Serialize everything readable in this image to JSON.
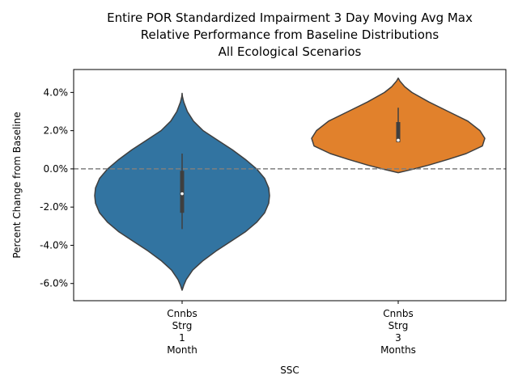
{
  "chart_data": {
    "type": "violin",
    "title_lines": [
      "Entire POR Standardized Impairment 3 Day Moving Avg Max",
      "Relative Performance from Baseline Distributions",
      "All Ecological Scenarios"
    ],
    "xlabel": "SSC",
    "ylabel": "Percent Change from Baseline",
    "ylim": [
      -6.9,
      5.2
    ],
    "yticks": [
      {
        "value": 4.0,
        "label": "4.0%"
      },
      {
        "value": 2.0,
        "label": "2.0%"
      },
      {
        "value": 0.0,
        "label": "0.0%"
      },
      {
        "value": -2.0,
        "label": "-2.0%"
      },
      {
        "value": -4.0,
        "label": "-4.0%"
      },
      {
        "value": -6.0,
        "label": "-6.0%"
      }
    ],
    "reference_line": {
      "y": 0.0,
      "style": "dashed",
      "color": "#7f7f7f"
    },
    "categories": [
      {
        "lines": [
          "Cnnbs",
          "Strg",
          "1",
          "Month"
        ]
      },
      {
        "lines": [
          "Cnnbs",
          "Strg",
          "3",
          "Months"
        ]
      }
    ],
    "violins": [
      {
        "color": "#3274a1",
        "min": -6.35,
        "max": 3.95,
        "q1": -2.3,
        "median": -1.3,
        "q3": -0.1,
        "whisker_low": -3.15,
        "whisker_high": 0.8,
        "profile": [
          [
            3.95,
            0.02
          ],
          [
            3.8,
            0.3
          ],
          [
            3.5,
            2.0
          ],
          [
            3.0,
            6.5
          ],
          [
            2.5,
            14.0
          ],
          [
            2.0,
            26.0
          ],
          [
            1.5,
            44.0
          ],
          [
            1.0,
            62.0
          ],
          [
            0.5,
            78.0
          ],
          [
            0.0,
            92.0
          ],
          [
            -0.5,
            102.0
          ],
          [
            -1.0,
            107.0
          ],
          [
            -1.4,
            108.0
          ],
          [
            -1.8,
            107.0
          ],
          [
            -2.3,
            102.0
          ],
          [
            -2.8,
            92.0
          ],
          [
            -3.3,
            78.0
          ],
          [
            -3.8,
            60.0
          ],
          [
            -4.3,
            42.0
          ],
          [
            -4.8,
            26.0
          ],
          [
            -5.3,
            13.0
          ],
          [
            -5.8,
            5.0
          ],
          [
            -6.1,
            2.0
          ],
          [
            -6.35,
            0.02
          ]
        ]
      },
      {
        "color": "#e1812c",
        "min": -0.2,
        "max": 4.75,
        "q1": 1.4,
        "median": 1.5,
        "q3": 2.45,
        "whisker_low": 1.4,
        "whisker_high": 3.2,
        "profile": [
          [
            4.75,
            0.02
          ],
          [
            4.6,
            2.0
          ],
          [
            4.3,
            8.0
          ],
          [
            4.0,
            17.0
          ],
          [
            3.5,
            38.0
          ],
          [
            3.0,
            62.0
          ],
          [
            2.5,
            86.0
          ],
          [
            2.0,
            101.0
          ],
          [
            1.6,
            107.0
          ],
          [
            1.2,
            104.0
          ],
          [
            0.8,
            84.0
          ],
          [
            0.5,
            62.0
          ],
          [
            0.2,
            38.0
          ],
          [
            0.0,
            20.0
          ],
          [
            -0.2,
            0.02
          ]
        ]
      }
    ]
  }
}
